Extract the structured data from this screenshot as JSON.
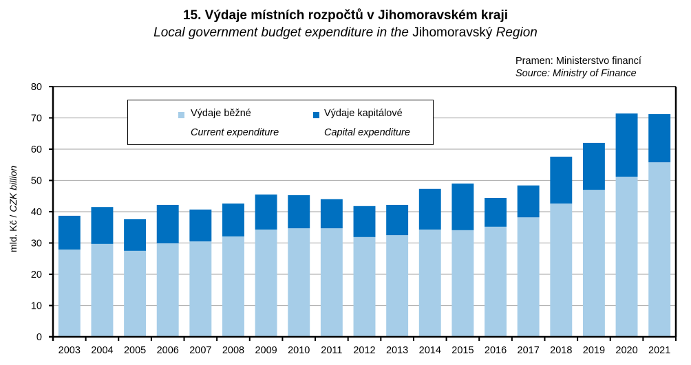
{
  "chart_data": {
    "type": "bar",
    "stacked": true,
    "title": "15. Výdaje místních rozpočtů v Jihomoravském kraji",
    "subtitle_italic_part1": "Local government budget expenditure in the",
    "subtitle_plain": "Jihomoravský",
    "subtitle_italic_part2": "Region",
    "source_cz": "Pramen: Ministerstvo  financí",
    "source_en": "Source: Ministry of Finance",
    "xlabel": "",
    "ylabel_cz": "mld. Kč /",
    "ylabel_en": "CZK billion",
    "ylim": [
      0,
      80
    ],
    "yticks": [
      0,
      10,
      20,
      30,
      40,
      50,
      60,
      70,
      80
    ],
    "grid": true,
    "legend_position": "top-left",
    "categories": [
      "2003",
      "2004",
      "2005",
      "2006",
      "2007",
      "2008",
      "2009",
      "2010",
      "2011",
      "2012",
      "2013",
      "2014",
      "2015",
      "2016",
      "2017",
      "2018",
      "2019",
      "2020",
      "2021"
    ],
    "series": [
      {
        "name": "Výdaje běžné",
        "name_en": "Current expenditure",
        "color": "#A6CDE8",
        "values": [
          27.9,
          29.7,
          27.5,
          29.9,
          30.5,
          32.1,
          34.3,
          34.7,
          34.7,
          31.9,
          32.5,
          34.3,
          34.1,
          35.2,
          38.2,
          42.6,
          47.0,
          51.2,
          55.8
        ]
      },
      {
        "name": "Výdaje kapitálové",
        "name_en": "Capital expenditure",
        "color": "#0070C0",
        "values": [
          10.8,
          11.8,
          10.1,
          12.3,
          10.2,
          10.5,
          11.2,
          10.6,
          9.3,
          9.9,
          9.7,
          13.0,
          14.9,
          9.2,
          10.2,
          15.0,
          15.0,
          20.2,
          15.4
        ]
      }
    ]
  }
}
